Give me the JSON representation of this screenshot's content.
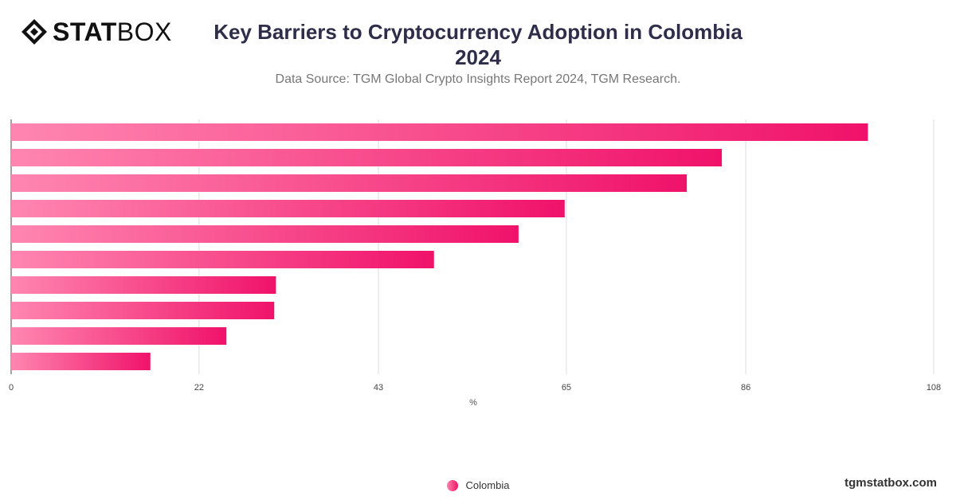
{
  "brand": {
    "logo_bold": "STAT",
    "logo_light": "BOX",
    "site": "tgmstatbox.com"
  },
  "chart_data": {
    "type": "bar",
    "orientation": "horizontal",
    "title": "Key Barriers to Cryptocurrency Adoption in Colombia 2024",
    "subtitle": "Data Source: TGM Global Crypto Insights Report 2024, TGM Research.",
    "xlabel": "%",
    "ylabel": "",
    "xlim": [
      0,
      108
    ],
    "x_ticks": [
      "0",
      "22",
      "43",
      "65",
      "86",
      "108"
    ],
    "categories": [
      "",
      "",
      "",
      "",
      "",
      "",
      "",
      "",
      "",
      ""
    ],
    "series": [
      {
        "name": "Colombia",
        "values": [
          100.3,
          83.2,
          79.1,
          64.8,
          59.4,
          49.5,
          31.0,
          30.8,
          25.2,
          16.3
        ]
      }
    ],
    "grid": true,
    "legend_position": "bottom-center",
    "colors": {
      "bar_start": "#ff86b0",
      "bar_end": "#f0126a",
      "grid": "#dddddd",
      "axis": "#444444"
    }
  }
}
